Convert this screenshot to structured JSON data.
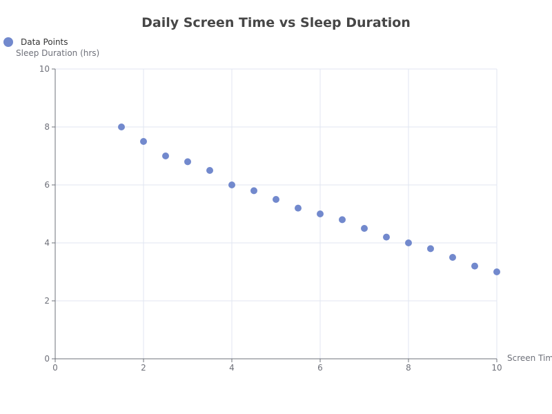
{
  "chart_data": {
    "type": "scatter",
    "title": "Daily Screen Time vs Sleep Duration",
    "xlabel": "Screen Time",
    "ylabel": "Sleep Duration (hrs)",
    "legend": {
      "entries": [
        "Data Points"
      ],
      "position": "top-left"
    },
    "xlim": [
      0,
      10
    ],
    "ylim": [
      0,
      10
    ],
    "x_ticks": [
      0,
      2,
      4,
      6,
      8,
      10
    ],
    "y_ticks": [
      0,
      2,
      4,
      6,
      8,
      10
    ],
    "grid": true,
    "series": [
      {
        "name": "Data Points",
        "color": "#7289cd",
        "points": [
          {
            "x": 1.5,
            "y": 8.0
          },
          {
            "x": 2.0,
            "y": 7.5
          },
          {
            "x": 2.5,
            "y": 7.0
          },
          {
            "x": 3.0,
            "y": 6.8
          },
          {
            "x": 3.5,
            "y": 6.5
          },
          {
            "x": 4.0,
            "y": 6.0
          },
          {
            "x": 4.5,
            "y": 5.8
          },
          {
            "x": 5.0,
            "y": 5.5
          },
          {
            "x": 5.5,
            "y": 5.2
          },
          {
            "x": 6.0,
            "y": 5.0
          },
          {
            "x": 6.5,
            "y": 4.8
          },
          {
            "x": 7.0,
            "y": 4.5
          },
          {
            "x": 7.5,
            "y": 4.2
          },
          {
            "x": 8.0,
            "y": 4.0
          },
          {
            "x": 8.5,
            "y": 3.8
          },
          {
            "x": 9.0,
            "y": 3.5
          },
          {
            "x": 9.5,
            "y": 3.2
          },
          {
            "x": 10.0,
            "y": 3.0
          }
        ]
      }
    ]
  }
}
